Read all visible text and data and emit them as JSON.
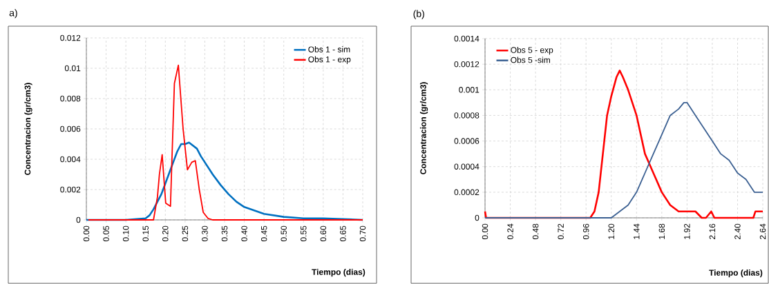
{
  "chart_data": [
    {
      "type": "line",
      "title": "a)",
      "xlabel": "Tiempo (dias)",
      "ylabel": "Concentracion  (gr/cm3)",
      "xlim": [
        0,
        0.7
      ],
      "ylim": [
        0,
        0.012
      ],
      "xticks": [
        {
          "value": 0,
          "label": "0.00"
        },
        {
          "value": 0.05,
          "label": "0.05"
        },
        {
          "value": 0.1,
          "label": "0.10"
        },
        {
          "value": 0.15,
          "label": "0.15"
        },
        {
          "value": 0.2,
          "label": "0.20"
        },
        {
          "value": 0.25,
          "label": "0.25"
        },
        {
          "value": 0.3,
          "label": "0.30"
        },
        {
          "value": 0.35,
          "label": "0.35"
        },
        {
          "value": 0.4,
          "label": "0.40"
        },
        {
          "value": 0.45,
          "label": "0.45"
        },
        {
          "value": 0.5,
          "label": "0.50"
        },
        {
          "value": 0.55,
          "label": "0.55"
        },
        {
          "value": 0.6,
          "label": "0.60"
        },
        {
          "value": 0.65,
          "label": "0.65"
        },
        {
          "value": 0.7,
          "label": "0.70"
        }
      ],
      "yticks": [
        0,
        0.002,
        0.004,
        0.006,
        0.008,
        0.01,
        0.012
      ],
      "grid": true,
      "legend": "top right",
      "line_style": "solid",
      "series": [
        {
          "name": "Obs 1 - sim",
          "color": "#0070c0",
          "x": [
            0,
            0.1,
            0.15,
            0.16,
            0.17,
            0.18,
            0.19,
            0.2,
            0.21,
            0.22,
            0.23,
            0.24,
            0.25,
            0.26,
            0.27,
            0.28,
            0.29,
            0.3,
            0.32,
            0.34,
            0.36,
            0.38,
            0.4,
            0.45,
            0.5,
            0.55,
            0.6,
            0.7
          ],
          "values": [
            0,
            0,
            0.0001,
            0.0003,
            0.0007,
            0.0012,
            0.0017,
            0.0024,
            0.0031,
            0.0038,
            0.0045,
            0.005,
            0.005,
            0.0051,
            0.0049,
            0.0047,
            0.0042,
            0.0038,
            0.003,
            0.0023,
            0.0017,
            0.0012,
            0.00085,
            0.0004,
            0.0002,
            0.0001,
            0.0001,
            0
          ]
        },
        {
          "name": "Obs 1 - exp",
          "color": "#ff0000",
          "x": [
            0.005,
            0.05,
            0.1,
            0.16,
            0.17,
            0.18,
            0.185,
            0.192,
            0.201,
            0.213,
            0.218,
            0.223,
            0.233,
            0.245,
            0.256,
            0.267,
            0.276,
            0.286,
            0.296,
            0.308,
            0.32,
            0.7
          ],
          "values": [
            0,
            0,
            0,
            0,
            0,
            0.0015,
            0.003,
            0.0043,
            0.0011,
            0.0009,
            0.005,
            0.009,
            0.0102,
            0.006,
            0.0033,
            0.0038,
            0.0039,
            0.002,
            0.0005,
            0.0001,
            0,
            0
          ]
        }
      ]
    },
    {
      "type": "line",
      "title": "(b)",
      "xlabel": "Tiempo (dias)",
      "ylabel": "Concentracion  (gr/cm3)",
      "xlim": [
        0,
        2.64
      ],
      "ylim": [
        0,
        0.0014
      ],
      "xticks": [
        {
          "value": 0,
          "label": "0.00"
        },
        0.24,
        0.48,
        0.72,
        0.96,
        {
          "value": 1.2,
          "label": "1.20"
        },
        1.44,
        1.68,
        1.92,
        2.16,
        {
          "value": 2.4,
          "label": "2.40"
        },
        2.64
      ],
      "yticks": [
        0,
        0.0002,
        0.0004,
        0.0006,
        0.0008,
        0.001,
        0.0012,
        0.0014
      ],
      "grid": true,
      "legend": "top left",
      "line_style": "solid",
      "series": [
        {
          "name": "Obs 5 - exp",
          "color": "#ff0000",
          "x": [
            0,
            0.01,
            0.02,
            0.96,
            1.0,
            1.04,
            1.08,
            1.12,
            1.16,
            1.2,
            1.25,
            1.28,
            1.31,
            1.36,
            1.44,
            1.52,
            1.6,
            1.68,
            1.76,
            1.84,
            1.92,
            2.0,
            2.06,
            2.1,
            2.15,
            2.18,
            2.55,
            2.57,
            2.64
          ],
          "values": [
            5e-05,
            0,
            0,
            0,
            0,
            5e-05,
            0.0002,
            0.0005,
            0.0008,
            0.00095,
            0.0011,
            0.00115,
            0.0011,
            0.001,
            0.0008,
            0.0005,
            0.00035,
            0.0002,
            0.0001,
            5e-05,
            5e-05,
            5e-05,
            0,
            0,
            5e-05,
            0,
            0,
            5e-05,
            5e-05
          ]
        },
        {
          "name": "Obs 5 -sim",
          "color": "#3a5f91",
          "x": [
            0,
            1.2,
            1.28,
            1.36,
            1.44,
            1.52,
            1.6,
            1.68,
            1.76,
            1.84,
            1.89,
            1.92,
            2.0,
            2.08,
            2.16,
            2.24,
            2.32,
            2.4,
            2.48,
            2.56,
            2.64
          ],
          "values": [
            0,
            0,
            5e-05,
            0.0001,
            0.0002,
            0.00035,
            0.0005,
            0.00065,
            0.0008,
            0.00085,
            0.0009,
            0.0009,
            0.0008,
            0.0007,
            0.0006,
            0.0005,
            0.00045,
            0.00035,
            0.0003,
            0.0002,
            0.0002
          ]
        }
      ]
    }
  ]
}
